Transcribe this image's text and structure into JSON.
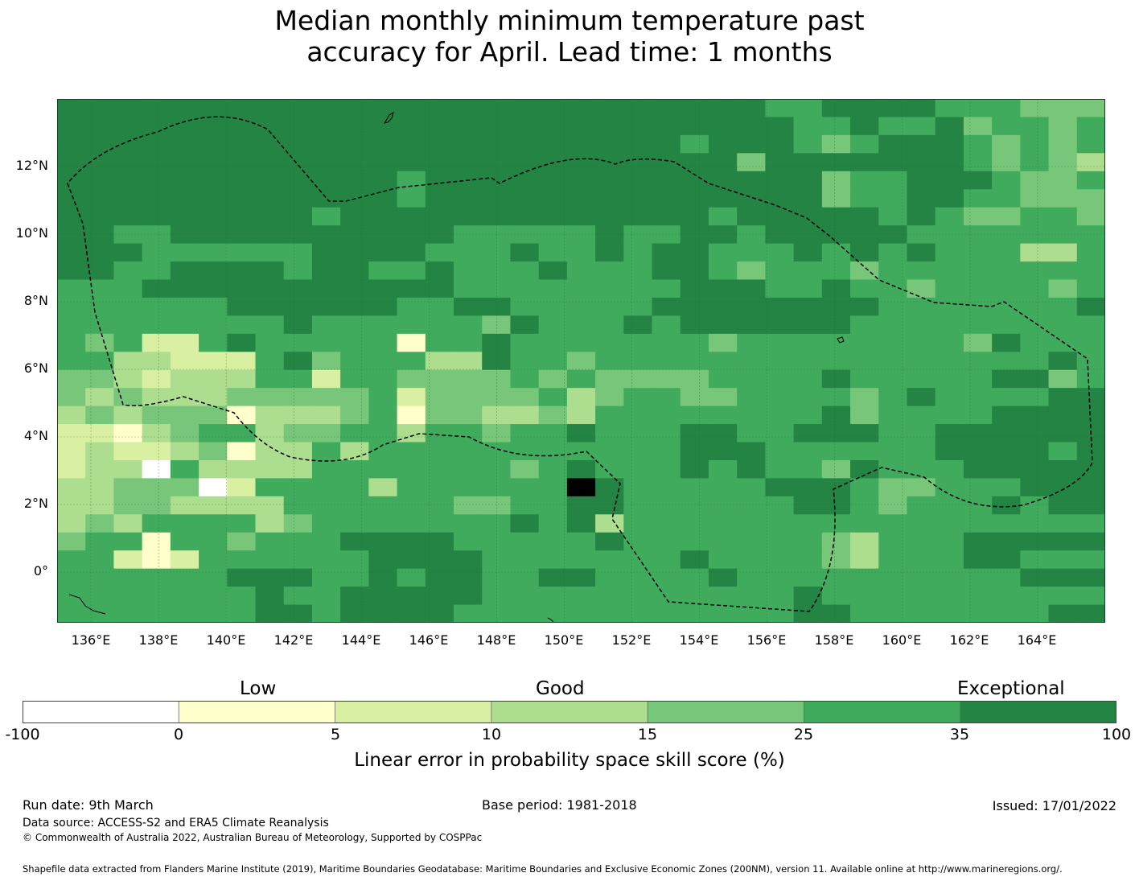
{
  "title": {
    "line1": "Median monthly minimum temperature past",
    "line2": "accuracy for April. Lead time: 1 months"
  },
  "map": {
    "lon_range": [
      135.0,
      166.0
    ],
    "lat_range": [
      -1.5,
      14.0
    ],
    "cell_size_deg": 0.833,
    "lat_ticks": [
      "12°N",
      "10°N",
      "8°N",
      "6°N",
      "4°N",
      "2°N",
      "0°"
    ],
    "lon_ticks": [
      "136°E",
      "138°E",
      "140°E",
      "142°E",
      "144°E",
      "146°E",
      "148°E",
      "150°E",
      "152°E",
      "154°E",
      "156°E",
      "158°E",
      "160°E",
      "162°E",
      "164°E"
    ],
    "boundary_style": "dashed black line (EEZ)",
    "grid_rows_north_to_south": [
      "6666666666666666666666666556666555444",
      "6666666666666666666666666655655645545",
      "6666666666666666666666566654566654545",
      "6666666666666666666666664666666654543",
      "6666666666665666666666666664556665445",
      "6666666666665666666666666664556655444",
      "6666666665666666666666656666656544554",
      "6655666666666655555655665666665555555",
      "6665555556666555655656655565656555335",
      "6655666656655655565556654555455555555",
      "5556666666666655555555666556554555545",
      "5555556666665566555556666666655555556",
      "5555555565555554655565666666555555555",
      "5452256555551556555555545555555546555",
      "5533222564555336554555555555555555565",
      "4432333552554444545444455556555556645",
      "4343334444452444453455445555456555566",
      "3434441333451443343555555556455556666",
      "2213455344553554556555665566655666666",
      "2322341335355555555555666555555666656",
      "2330533335555555456555656554655566666",
      "3344402555535555557655555666544555666",
      "3344333355555544556655555566545556566",
      "3435555345555555656355555555555555555",
      "4551554555666655555655555554355566666",
      "5521255555566665555555655554355566555",
      "5555556665565665566555565555555555666",
      "5555555655666665555555555565555555555",
      "5555555665666655555555555566555555566"
    ]
  },
  "colorbar": {
    "categories": [
      "Low",
      "Good",
      "Exceptional"
    ],
    "ticks": [
      "-100",
      "0",
      "5",
      "10",
      "15",
      "25",
      "35",
      "100"
    ],
    "colors": [
      "#ffffff",
      "#ffffcc",
      "#d9f0a3",
      "#addd8e",
      "#78c679",
      "#41ab5d",
      "#238443"
    ],
    "xlabel": "Linear error in probability space skill score (%)"
  },
  "footer": {
    "run_date": "Run date: 9th March",
    "base_period": "Base period: 1981-2018",
    "issued": "Issued: 17/01/2022",
    "data_source": "Data source: ACCESS-S2 and ERA5 Climate Reanalysis",
    "copyright": "© Commonwealth of Australia 2022, Australian Bureau of Meteorology, Supported by COSPPac",
    "shapefile": "Shapefile data extracted from Flanders Marine Institute (2019), Maritime Boundaries Geodatabase: Maritime Boundaries and Exclusive Economic Zones (200NM), version 11. Available online at http://www.marineregions.org/."
  }
}
